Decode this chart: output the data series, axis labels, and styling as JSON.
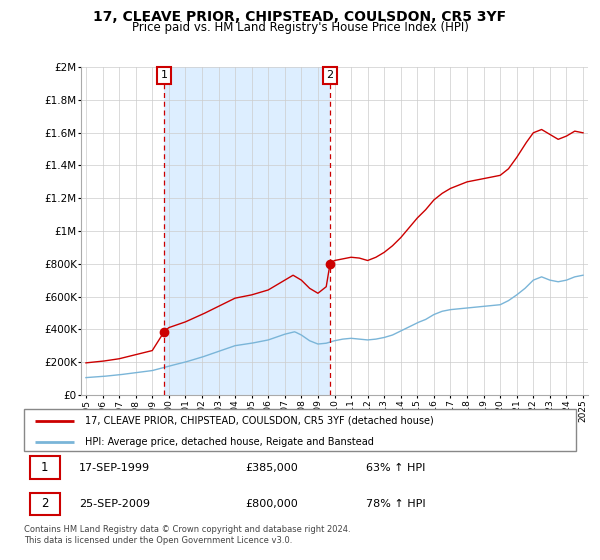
{
  "title": "17, CLEAVE PRIOR, CHIPSTEAD, COULSDON, CR5 3YF",
  "subtitle": "Price paid vs. HM Land Registry's House Price Index (HPI)",
  "legend_line1": "17, CLEAVE PRIOR, CHIPSTEAD, COULSDON, CR5 3YF (detached house)",
  "legend_line2": "HPI: Average price, detached house, Reigate and Banstead",
  "sale1_date": "17-SEP-1999",
  "sale1_price": "£385,000",
  "sale1_hpi": "63% ↑ HPI",
  "sale2_date": "25-SEP-2009",
  "sale2_price": "£800,000",
  "sale2_hpi": "78% ↑ HPI",
  "footnote": "Contains HM Land Registry data © Crown copyright and database right 2024.\nThis data is licensed under the Open Government Licence v3.0.",
  "hpi_color": "#7ab5d8",
  "price_color": "#cc0000",
  "sale_vline_color": "#cc0000",
  "bg_highlight_color": "#ddeeff",
  "ylim": [
    0,
    2000000
  ],
  "yticks": [
    0,
    200000,
    400000,
    600000,
    800000,
    1000000,
    1200000,
    1400000,
    1600000,
    1800000,
    2000000
  ],
  "ytick_labels": [
    "£0",
    "£200K",
    "£400K",
    "£600K",
    "£800K",
    "£1M",
    "£1.2M",
    "£1.4M",
    "£1.6M",
    "£1.8M",
    "£2M"
  ],
  "sale1_year": 1999.72,
  "sale1_value": 385000,
  "sale2_year": 2009.73,
  "sale2_value": 800000,
  "xmin": 1995,
  "xmax": 2025
}
